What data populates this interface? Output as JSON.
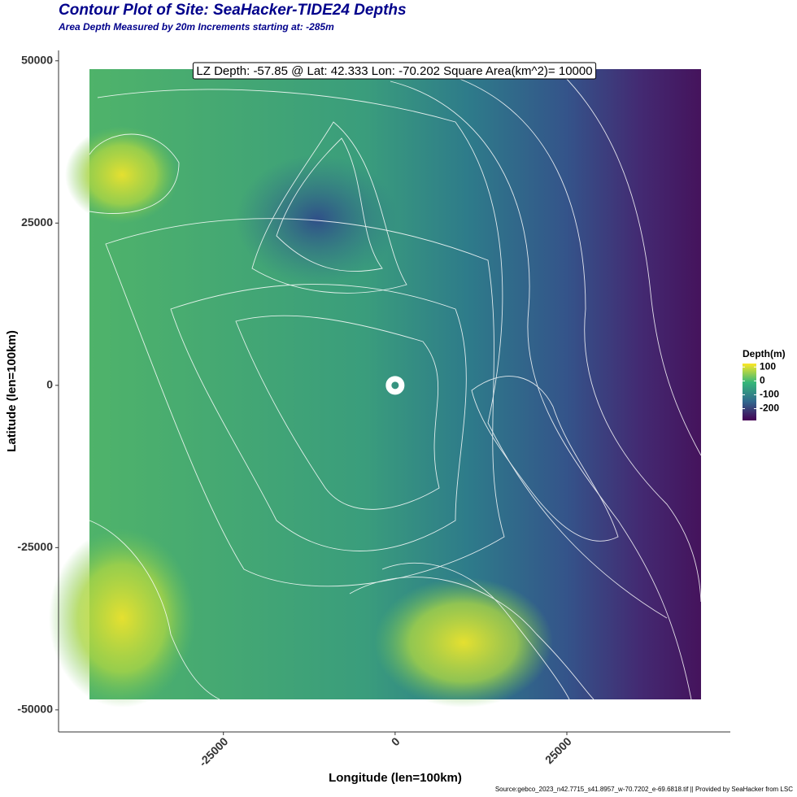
{
  "chart_data": {
    "type": "contour",
    "title": "Contour Plot of Site: SeaHacker-TIDE24 Depths",
    "subtitle": "Area Depth Measured by 20m Increments starting at: -285m",
    "x_label": "Longitude (len=100km)",
    "y_label": "Latitude (len=100km)",
    "xlim": [
      -49000,
      48800
    ],
    "ylim": [
      -53400,
      51600
    ],
    "xticks": [
      -25000,
      0,
      25000
    ],
    "yticks": [
      -50000,
      -25000,
      0,
      25000,
      50000
    ],
    "annotation": "LZ Depth: -57.85 @ Lat: 42.333 Lon: -70.202 Square Area(km^2)= 10000",
    "marker": {
      "x": 0,
      "y": 0
    },
    "legend": {
      "title": "Depth(m)",
      "lim": [
        -285,
        125
      ],
      "ticks": [
        100,
        0,
        -100,
        -200
      ],
      "colors": [
        "#fde725",
        "#35b779",
        "#31688e",
        "#440154"
      ]
    },
    "source": "Source:gebco_2023_n42.7715_s41.8957_w-70.7202_e-69.6818.tif || Provided by SeaHacker from LSC"
  }
}
